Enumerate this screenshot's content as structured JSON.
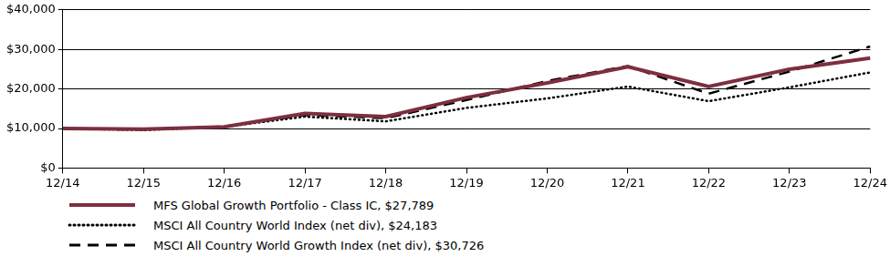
{
  "chart_data": {
    "type": "line",
    "categories": [
      "12/14",
      "12/15",
      "12/16",
      "12/17",
      "12/18",
      "12/19",
      "12/20",
      "12/21",
      "12/22",
      "12/23",
      "12/24"
    ],
    "series": [
      {
        "name": "MFS Global Growth Portfolio - Class IC, $27,789",
        "color": "#7d2e3f",
        "line_style": "solid",
        "values": [
          10000,
          9800,
          10400,
          13800,
          13000,
          17800,
          21500,
          25600,
          20600,
          25000,
          27789
        ]
      },
      {
        "name": "MSCI All Country World Index (net div), $24,183",
        "color": "#000000",
        "line_style": "dotted",
        "values": [
          10000,
          9600,
          10400,
          13000,
          11800,
          15200,
          17600,
          20600,
          16900,
          20400,
          24183
        ]
      },
      {
        "name": "MSCI All Country World Growth Index (net div), $30,726",
        "color": "#000000",
        "line_style": "dashed",
        "values": [
          10000,
          9700,
          10500,
          13400,
          12600,
          17200,
          22000,
          25800,
          18800,
          24400,
          30726
        ]
      }
    ],
    "ylim": [
      0,
      40000
    ],
    "yticks": [
      {
        "value": 0,
        "label": "$0"
      },
      {
        "value": 10000,
        "label": "$10,000"
      },
      {
        "value": 20000,
        "label": "$20,000"
      },
      {
        "value": 30000,
        "label": "$30,000"
      },
      {
        "value": 40000,
        "label": "$40,000"
      }
    ],
    "grid": true,
    "legend": "bottom"
  }
}
